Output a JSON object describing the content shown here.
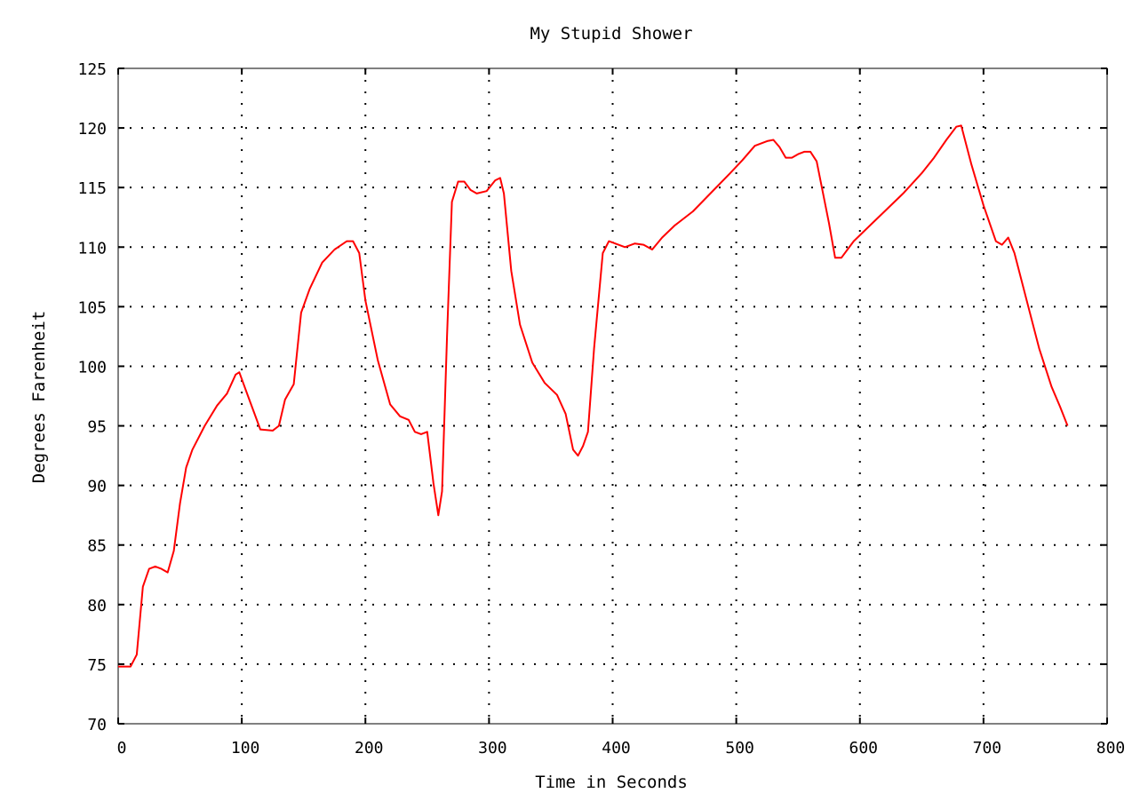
{
  "chart_data": {
    "type": "line",
    "title": "My Stupid Shower",
    "xlabel": "Time in Seconds",
    "ylabel": "Degrees Farenheit",
    "xlim": [
      0,
      800
    ],
    "ylim": [
      70,
      125
    ],
    "xticks": [
      0,
      100,
      200,
      300,
      400,
      500,
      600,
      700,
      800
    ],
    "yticks": [
      70,
      75,
      80,
      85,
      90,
      95,
      100,
      105,
      110,
      115,
      120,
      125
    ],
    "grid": true,
    "series": [
      {
        "color": "#ff0000",
        "x": [
          0,
          10,
          15,
          20,
          25,
          30,
          35,
          40,
          45,
          50,
          55,
          60,
          70,
          80,
          88,
          95,
          98,
          105,
          115,
          125,
          130,
          135,
          142,
          148,
          155,
          165,
          175,
          185,
          190,
          195,
          200,
          210,
          220,
          228,
          235,
          240,
          245,
          250,
          255,
          259,
          262,
          266,
          270,
          275,
          280,
          285,
          290,
          298,
          305,
          309,
          312,
          318,
          325,
          335,
          345,
          355,
          362,
          368,
          372,
          376,
          380,
          385,
          392,
          397,
          402,
          410,
          418,
          425,
          432,
          440,
          450,
          465,
          480,
          495,
          505,
          515,
          525,
          530,
          535,
          540,
          545,
          550,
          555,
          560,
          565,
          575,
          580,
          585,
          595,
          610,
          620,
          635,
          650,
          660,
          670,
          678,
          682,
          690,
          700,
          710,
          715,
          720,
          725,
          735,
          745,
          755,
          762,
          768
        ],
        "y": [
          74.8,
          74.8,
          75.8,
          81.5,
          83.0,
          83.2,
          83.0,
          82.7,
          84.5,
          88.5,
          91.5,
          93.0,
          95.0,
          96.7,
          97.7,
          99.3,
          99.5,
          97.5,
          94.7,
          94.6,
          95.0,
          97.2,
          98.5,
          104.5,
          106.5,
          108.7,
          109.8,
          110.5,
          110.5,
          109.5,
          105.5,
          100.5,
          96.8,
          95.8,
          95.5,
          94.5,
          94.3,
          94.5,
          90.2,
          87.5,
          89.5,
          102.5,
          113.8,
          115.5,
          115.5,
          114.8,
          114.5,
          114.7,
          115.6,
          115.8,
          114.5,
          108.0,
          103.5,
          100.3,
          98.6,
          97.6,
          96.0,
          93.0,
          92.5,
          93.3,
          94.5,
          101.5,
          109.5,
          110.5,
          110.3,
          110.0,
          110.3,
          110.2,
          109.8,
          110.8,
          111.8,
          113.0,
          114.6,
          116.2,
          117.3,
          118.5,
          118.9,
          119.0,
          118.4,
          117.5,
          117.5,
          117.8,
          118.0,
          118.0,
          117.2,
          112.0,
          109.1,
          109.1,
          110.5,
          112.0,
          113.0,
          114.5,
          116.2,
          117.5,
          119.0,
          120.1,
          120.2,
          117.0,
          113.5,
          110.5,
          110.2,
          110.8,
          109.5,
          105.5,
          101.5,
          98.3,
          96.6,
          95.0
        ]
      }
    ]
  }
}
